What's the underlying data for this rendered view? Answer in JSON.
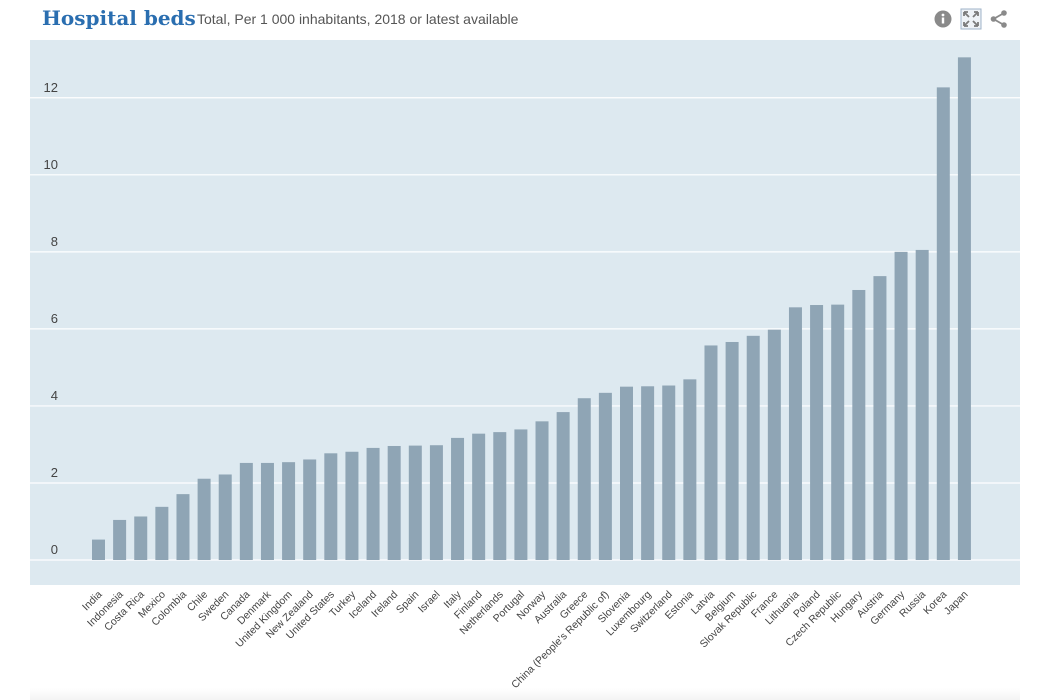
{
  "header": {
    "title": "Hospital beds",
    "subtitle": "Total, Per 1 000 inhabitants, 2018 or latest available"
  },
  "toolbar": {
    "info_icon": "info-icon",
    "fullscreen_icon": "fullscreen-icon",
    "share_icon": "share-icon"
  },
  "colors": {
    "bar": "#8fa5b5",
    "plot_background": "#dde9f0",
    "grid": "#ffffff",
    "title": "#2a6eb0"
  },
  "chart_data": {
    "type": "bar",
    "title": "Hospital beds",
    "subtitle": "Total, Per 1 000 inhabitants, 2018 or latest available",
    "xlabel": "",
    "ylabel": "",
    "ylim": [
      0,
      13.5
    ],
    "yticks": [
      0,
      2,
      4,
      6,
      8,
      10,
      12
    ],
    "grid": true,
    "categories": [
      "India",
      "Indonesia",
      "Costa Rica",
      "Mexico",
      "Colombia",
      "Chile",
      "Sweden",
      "Canada",
      "Denmark",
      "United Kingdom",
      "New Zealand",
      "United States",
      "Turkey",
      "Iceland",
      "Ireland",
      "Spain",
      "Israel",
      "Italy",
      "Finland",
      "Netherlands",
      "Portugal",
      "Norway",
      "Australia",
      "Greece",
      "China (People's Republic of)",
      "Slovenia",
      "Luxembourg",
      "Switzerland",
      "Estonia",
      "Latvia",
      "Belgium",
      "Slovak Republic",
      "France",
      "Lithuania",
      "Poland",
      "Czech Republic",
      "Hungary",
      "Austria",
      "Germany",
      "Russia",
      "Korea",
      "Japan"
    ],
    "values": [
      0.53,
      1.04,
      1.13,
      1.38,
      1.71,
      2.11,
      2.22,
      2.52,
      2.52,
      2.54,
      2.61,
      2.77,
      2.81,
      2.91,
      2.96,
      2.97,
      2.98,
      3.17,
      3.28,
      3.32,
      3.39,
      3.6,
      3.84,
      4.2,
      4.34,
      4.5,
      4.51,
      4.53,
      4.69,
      5.57,
      5.66,
      5.82,
      5.98,
      6.56,
      6.62,
      6.63,
      7.01,
      7.37,
      8.0,
      8.05,
      12.27,
      13.05
    ]
  }
}
